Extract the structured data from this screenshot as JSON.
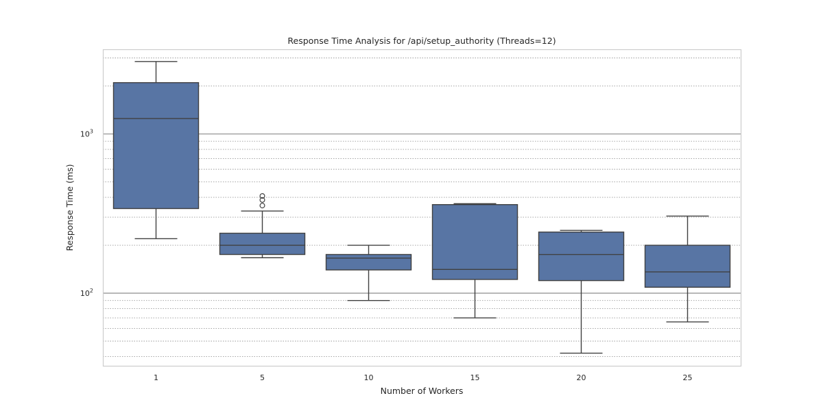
{
  "chart_data": {
    "type": "box",
    "title": "Response Time Analysis for /api/setup_authority (Threads=12)",
    "xlabel": "Number of Workers",
    "ylabel": "Response Time (ms)",
    "yscale": "log",
    "ylim": [
      35,
      3400
    ],
    "y_major_ticks": [
      {
        "value": 100,
        "label_base": "10",
        "label_exp": "2"
      },
      {
        "value": 1000,
        "label_base": "10",
        "label_exp": "3"
      }
    ],
    "grid": true,
    "box_color": "#5875a4",
    "line_color": "#404040",
    "categories": [
      "1",
      "5",
      "10",
      "15",
      "20",
      "25"
    ],
    "boxes": [
      {
        "category": "1",
        "whisker_low": 220,
        "q1": 340,
        "median": 1250,
        "q3": 2100,
        "whisker_high": 2850,
        "outliers": []
      },
      {
        "category": "5",
        "whisker_low": 167,
        "q1": 175,
        "median": 200,
        "q3": 238,
        "whisker_high": 328,
        "outliers": [
          355,
          385,
          408
        ]
      },
      {
        "category": "10",
        "whisker_low": 90,
        "q1": 140,
        "median": 166,
        "q3": 175,
        "whisker_high": 200,
        "outliers": []
      },
      {
        "category": "15",
        "whisker_low": 70,
        "q1": 122,
        "median": 141,
        "q3": 360,
        "whisker_high": 365,
        "outliers": []
      },
      {
        "category": "20",
        "whisker_low": 42,
        "q1": 120,
        "median": 175,
        "q3": 242,
        "whisker_high": 248,
        "outliers": []
      },
      {
        "category": "25",
        "whisker_low": 66,
        "q1": 109,
        "median": 136,
        "q3": 200,
        "whisker_high": 305,
        "outliers": []
      }
    ]
  }
}
